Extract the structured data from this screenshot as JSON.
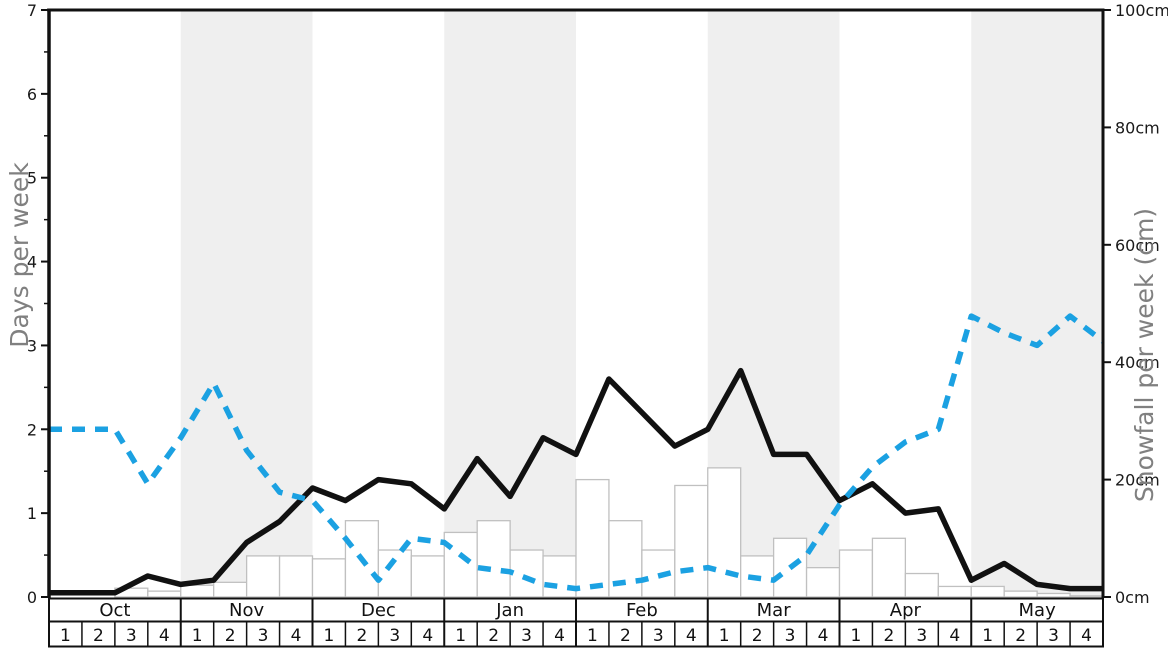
{
  "chart_data": {
    "type": "line+bar",
    "title": "",
    "months": [
      "Oct",
      "Nov",
      "Dec",
      "Jan",
      "Feb",
      "Mar",
      "Apr",
      "May"
    ],
    "shaded_months": [
      "Nov",
      "Jan",
      "Mar",
      "May"
    ],
    "week_labels": [
      "1",
      "2",
      "3",
      "4"
    ],
    "left_axis": {
      "label": "Days per week",
      "min": 0,
      "max": 7,
      "major_tick": 1,
      "minor_tick": 0.5,
      "tick_labels": [
        "0",
        "1",
        "2",
        "3",
        "4",
        "5",
        "6",
        "7"
      ]
    },
    "right_axis": {
      "label": "Snowfall per week (cm)",
      "min": 0,
      "max": 100,
      "major_tick": 20,
      "tick_labels": [
        "0cm",
        "20cm",
        "40cm",
        "60cm",
        "80cm",
        "100cm"
      ]
    },
    "series": [
      {
        "name": "black-solid-line",
        "type": "line",
        "style": "solid",
        "color": "#111111",
        "axis": "left",
        "values": [
          0.05,
          0.05,
          0.25,
          0.15,
          0.2,
          0.65,
          0.9,
          1.3,
          1.15,
          1.4,
          1.35,
          1.05,
          1.65,
          1.2,
          1.9,
          1.7,
          2.6,
          2.2,
          1.8,
          2.0,
          2.7,
          1.7,
          1.7,
          1.15,
          1.35,
          1.0,
          1.05,
          0.2,
          0.4,
          0.15,
          0.1,
          0.1
        ]
      },
      {
        "name": "blue-dashed-line",
        "type": "line",
        "style": "dashed",
        "color": "#1ba1e2",
        "axis": "left",
        "values": [
          2.0,
          2.0,
          1.35,
          1.9,
          2.55,
          1.75,
          1.25,
          1.15,
          0.7,
          0.2,
          0.7,
          0.65,
          0.35,
          0.3,
          0.15,
          0.1,
          0.15,
          0.2,
          0.3,
          0.35,
          0.25,
          0.2,
          0.5,
          1.1,
          1.55,
          1.85,
          2.0,
          3.35,
          3.15,
          3.0,
          3.35,
          3.05
        ]
      },
      {
        "name": "snowfall-bars",
        "type": "bar",
        "fill": "#ffffff",
        "border": "#c0c0c0",
        "axis": "right",
        "values": [
          0,
          0,
          1.5,
          1,
          2,
          2.5,
          7,
          7,
          6.5,
          13,
          8,
          7,
          11,
          13,
          8,
          7,
          20,
          13,
          8,
          19,
          22,
          7,
          10,
          5,
          8,
          10,
          4,
          1.8,
          1.8,
          1,
          0.6,
          0.2
        ]
      }
    ],
    "colors": {
      "band": "#efefef",
      "axis": "#111111",
      "bar_border": "#c0c0c0",
      "axis_title": "#808080"
    },
    "layout_hints": {
      "legend": "none",
      "grid": "off",
      "weeks_total": 32
    }
  }
}
